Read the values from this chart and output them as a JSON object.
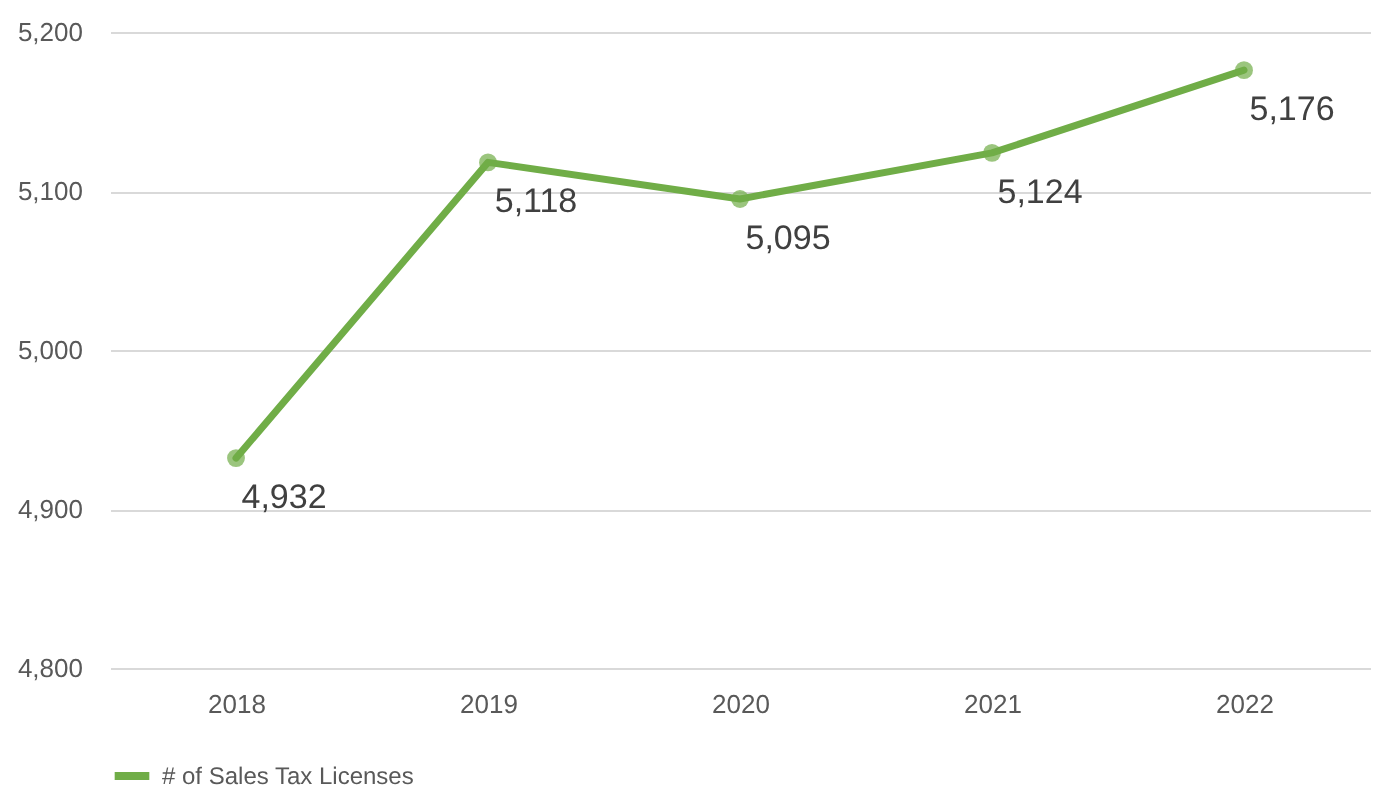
{
  "chart_data": {
    "type": "line",
    "categories": [
      "2018",
      "2019",
      "2020",
      "2021",
      "2022"
    ],
    "series": [
      {
        "name": "# of Sales  Tax Licenses",
        "color": "#70ad47",
        "values": [
          4932,
          5118,
          5095,
          5124,
          5176
        ],
        "value_labels": [
          "4,932",
          "5,118",
          "5,095",
          "5,124",
          "5,176"
        ]
      }
    ],
    "ylim": [
      4800,
      5200
    ],
    "yticks": [
      {
        "value": 4800,
        "label": "4,800"
      },
      {
        "value": 4900,
        "label": "4,900"
      },
      {
        "value": 5000,
        "label": "5,000"
      },
      {
        "value": 5100,
        "label": "5,100"
      },
      {
        "value": 5200,
        "label": "5,200"
      }
    ],
    "grid": "y",
    "legend": "bottom",
    "marker": "circle",
    "line_style": "solid"
  }
}
